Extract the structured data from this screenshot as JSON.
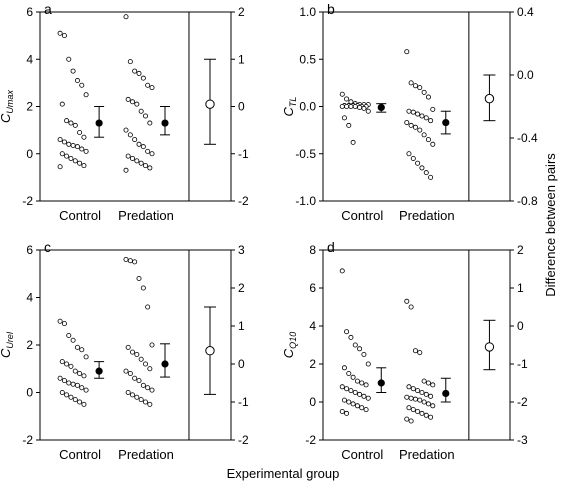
{
  "figure": {
    "xlabel": "Experimental group",
    "right_ylabel": "Difference between pairs"
  },
  "chart_data": [
    {
      "type": "scatter",
      "panel": "a",
      "ylabel_main": "C",
      "ylabel_sub": "Umax",
      "categories": [
        "Control",
        "Predation"
      ],
      "ylim": [
        -2,
        6
      ],
      "yticks": [
        -2,
        0,
        2,
        4,
        6
      ],
      "y2lim": [
        -2,
        2
      ],
      "y2ticks": [
        -2,
        -1,
        0,
        1,
        2
      ],
      "series": [
        {
          "category": "Control",
          "points": [
            5.1,
            5.0,
            4.0,
            3.5,
            3.1,
            2.9,
            2.5,
            2.1,
            1.4,
            1.3,
            1.2,
            0.9,
            0.7,
            0.6,
            0.5,
            0.4,
            0.35,
            0.3,
            0.2,
            0.1,
            0.0,
            -0.1,
            -0.2,
            -0.3,
            -0.4,
            -0.5,
            -0.55
          ],
          "mean": 1.3,
          "ci": [
            0.7,
            2.0
          ]
        },
        {
          "category": "Predation",
          "points": [
            5.8,
            3.9,
            3.5,
            3.4,
            3.2,
            2.9,
            2.8,
            2.3,
            2.2,
            2.1,
            1.8,
            1.6,
            1.3,
            1.0,
            0.8,
            0.6,
            0.4,
            0.3,
            0.1,
            0.0,
            -0.1,
            -0.2,
            -0.3,
            -0.4,
            -0.5,
            -0.6,
            -0.7
          ],
          "mean": 1.3,
          "ci": [
            0.8,
            2.0
          ]
        }
      ],
      "difference": {
        "mean": 0.05,
        "ci": [
          -0.8,
          1.0
        ]
      }
    },
    {
      "type": "scatter",
      "panel": "b",
      "ylabel_main": "C",
      "ylabel_sub": "TL",
      "categories": [
        "Control",
        "Predation"
      ],
      "ylim": [
        -1.0,
        1.0
      ],
      "yticks": [
        -1.0,
        -0.5,
        0.0,
        0.5,
        1.0
      ],
      "ytick_labels": [
        "-1.0",
        "-0.5",
        "0.0",
        "0.5",
        "1.0"
      ],
      "y2lim": [
        -0.8,
        0.4
      ],
      "y2ticks": [
        -0.8,
        -0.4,
        0.0,
        0.4
      ],
      "y2tick_labels": [
        "-0.8",
        "-0.4",
        "0.0",
        "0.4"
      ],
      "series": [
        {
          "category": "Control",
          "points": [
            0.13,
            0.08,
            0.05,
            0.03,
            0.02,
            0.02,
            0.02,
            0.01,
            0.01,
            0.01,
            0.01,
            0.0,
            0.0,
            0.0,
            0.0,
            0.0,
            0.0,
            -0.01,
            -0.02,
            -0.05,
            -0.12,
            -0.2,
            -0.38
          ],
          "mean": -0.01,
          "ci": [
            -0.06,
            0.03
          ]
        },
        {
          "category": "Predation",
          "points": [
            0.58,
            0.25,
            0.22,
            0.2,
            0.15,
            0.1,
            -0.03,
            -0.05,
            -0.06,
            -0.08,
            -0.1,
            -0.12,
            -0.15,
            -0.17,
            -0.2,
            -0.22,
            -0.25,
            -0.3,
            -0.35,
            -0.4,
            -0.5,
            -0.55,
            -0.6,
            -0.65,
            -0.7,
            -0.75
          ],
          "mean": -0.17,
          "ci": [
            -0.29,
            -0.05
          ]
        }
      ],
      "difference": {
        "mean": -0.15,
        "ci": [
          -0.29,
          0.0
        ]
      }
    },
    {
      "type": "scatter",
      "panel": "c",
      "ylabel_main": "C",
      "ylabel_sub": "Urel",
      "categories": [
        "Control",
        "Predation"
      ],
      "ylim": [
        -2,
        6
      ],
      "yticks": [
        -2,
        0,
        2,
        4,
        6
      ],
      "y2lim": [
        -2,
        3
      ],
      "y2ticks": [
        -2,
        -1,
        0,
        1,
        2,
        3
      ],
      "series": [
        {
          "category": "Control",
          "points": [
            3.0,
            2.9,
            2.4,
            2.2,
            1.9,
            1.8,
            1.5,
            1.3,
            1.2,
            1.1,
            0.9,
            0.8,
            0.7,
            0.6,
            0.5,
            0.4,
            0.35,
            0.3,
            0.2,
            0.1,
            0.0,
            -0.1,
            -0.2,
            -0.3,
            -0.4,
            -0.5
          ],
          "mean": 0.9,
          "ci": [
            0.6,
            1.3
          ]
        },
        {
          "category": "Predation",
          "points": [
            5.6,
            5.55,
            5.5,
            4.8,
            4.4,
            3.6,
            2.0,
            1.9,
            1.7,
            1.6,
            1.4,
            1.2,
            1.0,
            0.9,
            0.8,
            0.6,
            0.5,
            0.3,
            0.2,
            0.1,
            0.0,
            -0.1,
            -0.2,
            -0.3,
            -0.4,
            -0.5
          ],
          "mean": 1.2,
          "ci": [
            0.65,
            2.05
          ]
        }
      ],
      "difference": {
        "mean": 0.35,
        "ci": [
          -0.8,
          1.5
        ]
      }
    },
    {
      "type": "scatter",
      "panel": "d",
      "ylabel_main": "C",
      "ylabel_sub": "Q10",
      "categories": [
        "Control",
        "Predation"
      ],
      "ylim": [
        -2,
        8
      ],
      "yticks": [
        -2,
        0,
        2,
        4,
        6,
        8
      ],
      "y2lim": [
        -3,
        2
      ],
      "y2ticks": [
        -3,
        -2,
        -1,
        0,
        1,
        2
      ],
      "series": [
        {
          "category": "Control",
          "points": [
            6.9,
            3.7,
            3.4,
            3.0,
            2.8,
            2.5,
            2.0,
            1.8,
            1.5,
            1.3,
            1.1,
            1.0,
            0.9,
            0.8,
            0.7,
            0.6,
            0.5,
            0.4,
            0.3,
            0.2,
            0.1,
            0.0,
            -0.1,
            -0.2,
            -0.3,
            -0.4,
            -0.5,
            -0.6
          ],
          "mean": 1.0,
          "ci": [
            0.5,
            1.8
          ]
        },
        {
          "category": "Predation",
          "points": [
            5.3,
            5.0,
            2.7,
            2.6,
            1.1,
            1.0,
            0.9,
            0.8,
            0.7,
            0.6,
            0.5,
            0.4,
            0.3,
            0.25,
            0.2,
            0.15,
            0.1,
            0.0,
            -0.1,
            -0.2,
            -0.3,
            -0.4,
            -0.5,
            -0.6,
            -0.7,
            -0.8,
            -0.9,
            -1.0
          ],
          "mean": 0.45,
          "ci": [
            0.0,
            1.25
          ]
        }
      ],
      "difference": {
        "mean": -0.55,
        "ci": [
          -1.15,
          0.15
        ]
      }
    }
  ]
}
